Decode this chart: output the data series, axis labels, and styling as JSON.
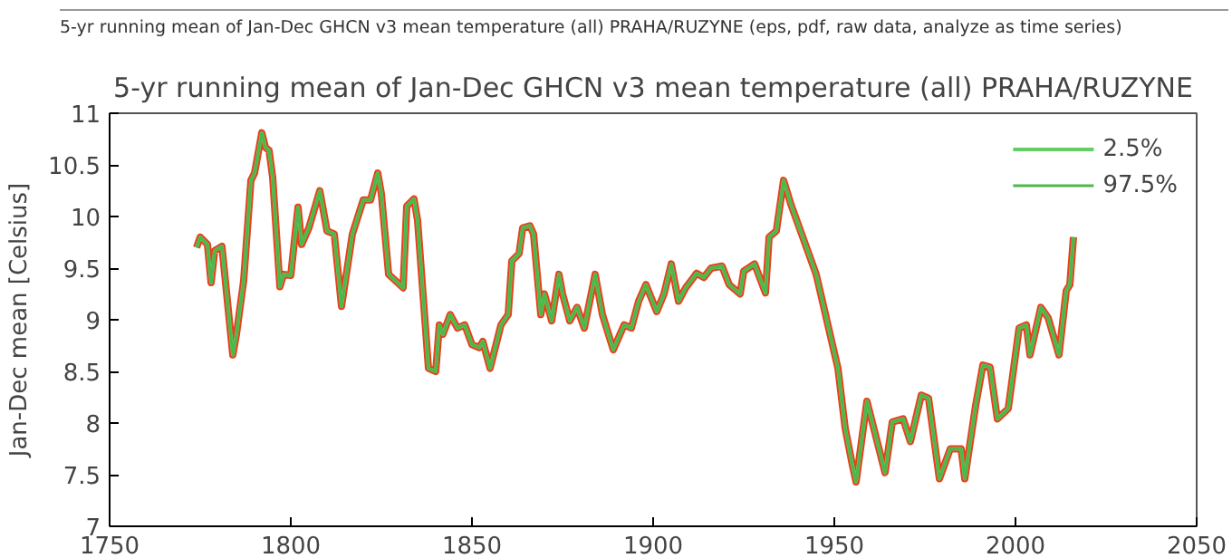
{
  "chart_data": {
    "type": "line",
    "title": "5-yr running mean of Jan-Dec GHCN v3 mean temperature (all) PRAHA/RUZYNE",
    "ylabel": "Jan-Dec mean [Celsius]",
    "annotations": [
      "5-yr running mean of Jan-Dec GHCN v3 mean temperature (all) PRAHA/RUZYNE (eps, pdf, raw data, analyze as time series)"
    ],
    "x": [
      1774,
      1775,
      1777,
      1778,
      1779,
      1781,
      1784,
      1785,
      1787,
      1789,
      1790,
      1792,
      1793,
      1794,
      1795,
      1797,
      1798,
      1800,
      1802,
      1803,
      1805,
      1808,
      1810,
      1812,
      1814,
      1817,
      1820,
      1822,
      1824,
      1825,
      1827,
      1831,
      1832,
      1834,
      1835,
      1838,
      1840,
      1841,
      1842,
      1844,
      1846,
      1848,
      1850,
      1852,
      1853,
      1855,
      1858,
      1860,
      1861,
      1863,
      1864,
      1866,
      1867,
      1869,
      1870,
      1872,
      1874,
      1875,
      1877,
      1879,
      1881,
      1884,
      1886,
      1889,
      1892,
      1894,
      1896,
      1898,
      1901,
      1903,
      1905,
      1907,
      1909,
      1912,
      1914,
      1916,
      1919,
      1921,
      1924,
      1925,
      1928,
      1931,
      1932,
      1934,
      1936,
      1938,
      1945,
      1951,
      1953,
      1955,
      1956,
      1959,
      1964,
      1966,
      1969,
      1971,
      1974,
      1976,
      1979,
      1982,
      1985,
      1986,
      1989,
      1991,
      1993,
      1995,
      1998,
      2001,
      2003,
      2004,
      2007,
      2009,
      2012,
      2014,
      2015,
      2016
    ],
    "series": [
      {
        "color": "#e8401c",
        "values": [
          9.7,
          9.8,
          9.73,
          9.36,
          9.67,
          9.71,
          8.66,
          8.86,
          9.38,
          10.35,
          10.42,
          10.81,
          10.67,
          10.64,
          10.38,
          9.32,
          9.44,
          9.43,
          10.09,
          9.73,
          9.89,
          10.25,
          9.86,
          9.83,
          9.13,
          9.83,
          10.16,
          10.16,
          10.42,
          10.22,
          9.44,
          9.31,
          10.1,
          10.17,
          9.96,
          8.53,
          8.5,
          8.95,
          8.86,
          9.05,
          8.92,
          8.95,
          8.76,
          8.73,
          8.79,
          8.53,
          8.95,
          9.05,
          9.57,
          9.64,
          9.89,
          9.91,
          9.83,
          9.05,
          9.25,
          8.99,
          9.44,
          9.25,
          8.99,
          9.12,
          8.92,
          9.44,
          9.05,
          8.71,
          8.95,
          8.92,
          9.18,
          9.34,
          9.08,
          9.25,
          9.54,
          9.18,
          9.31,
          9.45,
          9.41,
          9.5,
          9.52,
          9.34,
          9.25,
          9.47,
          9.54,
          9.26,
          9.8,
          9.86,
          10.35,
          10.12,
          9.44,
          8.53,
          7.95,
          7.59,
          7.43,
          8.21,
          7.52,
          8.01,
          8.04,
          7.82,
          8.27,
          8.24,
          7.46,
          7.75,
          7.75,
          7.46,
          8.17,
          8.56,
          8.54,
          8.04,
          8.14,
          8.92,
          8.95,
          8.66,
          9.12,
          9.02,
          8.66,
          9.28,
          9.34,
          9.8
        ]
      },
      {
        "name": "2.5%",
        "color": "#66cc66",
        "values": [
          9.7,
          9.8,
          9.73,
          9.36,
          9.67,
          9.71,
          8.66,
          8.86,
          9.38,
          10.35,
          10.42,
          10.81,
          10.67,
          10.64,
          10.38,
          9.32,
          9.44,
          9.43,
          10.09,
          9.73,
          9.89,
          10.25,
          9.86,
          9.83,
          9.13,
          9.83,
          10.16,
          10.16,
          10.42,
          10.22,
          9.44,
          9.31,
          10.1,
          10.17,
          9.96,
          8.53,
          8.5,
          8.95,
          8.86,
          9.05,
          8.92,
          8.95,
          8.76,
          8.73,
          8.79,
          8.53,
          8.95,
          9.05,
          9.57,
          9.64,
          9.89,
          9.91,
          9.83,
          9.05,
          9.25,
          8.99,
          9.44,
          9.25,
          8.99,
          9.12,
          8.92,
          9.44,
          9.05,
          8.71,
          8.95,
          8.92,
          9.18,
          9.34,
          9.08,
          9.25,
          9.54,
          9.18,
          9.31,
          9.45,
          9.41,
          9.5,
          9.52,
          9.34,
          9.25,
          9.47,
          9.54,
          9.26,
          9.8,
          9.86,
          10.35,
          10.12,
          9.44,
          8.53,
          7.95,
          7.59,
          7.43,
          8.21,
          7.52,
          8.01,
          8.04,
          7.82,
          8.27,
          8.24,
          7.46,
          7.75,
          7.75,
          7.46,
          8.17,
          8.56,
          8.54,
          8.04,
          8.14,
          8.92,
          8.95,
          8.66,
          9.12,
          9.02,
          8.66,
          9.28,
          9.34,
          9.8
        ]
      },
      {
        "name": "97.5%",
        "color": "#4cb84c",
        "values": [
          9.7,
          9.8,
          9.73,
          9.36,
          9.67,
          9.71,
          8.66,
          8.86,
          9.38,
          10.35,
          10.42,
          10.81,
          10.67,
          10.64,
          10.38,
          9.32,
          9.44,
          9.43,
          10.09,
          9.73,
          9.89,
          10.25,
          9.86,
          9.83,
          9.13,
          9.83,
          10.16,
          10.16,
          10.42,
          10.22,
          9.44,
          9.31,
          10.1,
          10.17,
          9.96,
          8.53,
          8.5,
          8.95,
          8.86,
          9.05,
          8.92,
          8.95,
          8.76,
          8.73,
          8.79,
          8.53,
          8.95,
          9.05,
          9.57,
          9.64,
          9.89,
          9.91,
          9.83,
          9.05,
          9.25,
          8.99,
          9.44,
          9.25,
          8.99,
          9.12,
          8.92,
          9.44,
          9.05,
          8.71,
          8.95,
          8.92,
          9.18,
          9.34,
          9.08,
          9.25,
          9.54,
          9.18,
          9.31,
          9.45,
          9.41,
          9.5,
          9.52,
          9.34,
          9.25,
          9.47,
          9.54,
          9.26,
          9.8,
          9.86,
          10.35,
          10.12,
          9.44,
          8.53,
          7.95,
          7.59,
          7.43,
          8.21,
          7.52,
          8.01,
          8.04,
          7.82,
          8.27,
          8.24,
          7.46,
          7.75,
          7.75,
          7.46,
          8.17,
          8.56,
          8.54,
          8.04,
          8.14,
          8.92,
          8.95,
          8.66,
          9.12,
          9.02,
          8.66,
          9.28,
          9.34,
          9.8
        ]
      }
    ],
    "xlim": [
      1750,
      2050
    ],
    "xticks": [
      1750,
      1800,
      1850,
      1900,
      1950,
      2000,
      2050
    ],
    "ylim": [
      7,
      11
    ],
    "yticks": [
      7,
      7.5,
      8,
      8.5,
      9,
      9.5,
      10,
      10.5,
      11
    ],
    "grid": false,
    "legend": "top right",
    "marker": "none",
    "line_style": "solid"
  }
}
